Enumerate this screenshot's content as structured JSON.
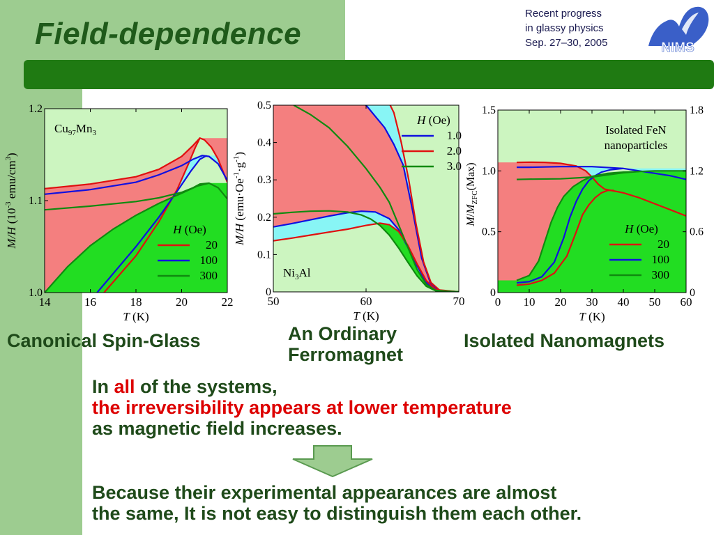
{
  "slide": {
    "title": "Field-dependence",
    "conference": [
      "Recent progress",
      "in glassy physics",
      "Sep. 27–30, 2005"
    ],
    "logo_text": "NIMS",
    "captions": {
      "left": "Canonical Spin-Glass",
      "middle": [
        "An Ordinary",
        "Ferromagnet"
      ],
      "right": "Isolated Nanomagnets"
    },
    "statement": {
      "line1_pre": "In ",
      "line1_highlight": "all",
      "line1_post": " of the systems,",
      "line2": "the irreversibility appears at lower temperature",
      "line3": "as magnetic field increases."
    },
    "conclusion": [
      "Because their experimental appearances are almost",
      "the same, It is not easy to distinguish them each other."
    ],
    "colors": {
      "title_green": "#1f5a1a",
      "bar_green": "#1f7a12",
      "panel_bg": "#ccf5c0",
      "fill_red": "#f47f7f",
      "fill_cyan": "#88f5f5",
      "fill_green": "#22dd22",
      "highlight_red": "#dd0000"
    }
  },
  "chart_data": [
    {
      "type": "line",
      "sample_label": [
        "Cu",
        "97",
        "Mn",
        "3"
      ],
      "xlabel": "T (K)",
      "ylabel": "M/H (10-3 emu/cm3)",
      "xlim": [
        14,
        22
      ],
      "ylim": [
        1.0,
        1.2
      ],
      "x_ticks": [
        14,
        16,
        18,
        20,
        22
      ],
      "y_ticks": [
        1.0,
        1.1,
        1.2
      ],
      "legend_title": "H (Oe)",
      "legend_position": "lower-right",
      "series": [
        {
          "name": "20",
          "color": "#e01010",
          "fc": [
            [
              14,
              1.113
            ],
            [
              16,
              1.118
            ],
            [
              18,
              1.126
            ],
            [
              19,
              1.134
            ],
            [
              20,
              1.148
            ],
            [
              20.5,
              1.16
            ],
            [
              20.8,
              1.168
            ],
            [
              21.0,
              1.166
            ],
            [
              21.3,
              1.158
            ],
            [
              21.6,
              1.145
            ],
            [
              22,
              1.12
            ]
          ],
          "zfc": [
            [
              16.6,
              1.0
            ],
            [
              18,
              1.04
            ],
            [
              19,
              1.077
            ],
            [
              19.8,
              1.112
            ],
            [
              20.3,
              1.14
            ],
            [
              20.6,
              1.158
            ],
            [
              20.8,
              1.168
            ]
          ]
        },
        {
          "name": "100",
          "color": "#1010e0",
          "fc": [
            [
              14,
              1.107
            ],
            [
              16,
              1.112
            ],
            [
              18,
              1.12
            ],
            [
              19,
              1.128
            ],
            [
              20,
              1.138
            ],
            [
              20.5,
              1.145
            ],
            [
              20.9,
              1.149
            ],
            [
              21.2,
              1.148
            ],
            [
              21.6,
              1.14
            ],
            [
              22,
              1.122
            ]
          ],
          "zfc": [
            [
              16.3,
              1.0
            ],
            [
              18,
              1.05
            ],
            [
              19,
              1.082
            ],
            [
              19.8,
              1.11
            ],
            [
              20.4,
              1.132
            ],
            [
              20.8,
              1.145
            ],
            [
              21.1,
              1.149
            ]
          ]
        },
        {
          "name": "300",
          "color": "#108a10",
          "fc": [
            [
              14,
              1.09
            ],
            [
              16,
              1.094
            ],
            [
              18,
              1.099
            ],
            [
              19,
              1.103
            ],
            [
              20,
              1.109
            ],
            [
              20.5,
              1.114
            ],
            [
              20.8,
              1.118
            ],
            [
              21.2,
              1.119
            ],
            [
              21.6,
              1.114
            ],
            [
              22,
              1.102
            ]
          ],
          "zfc": [
            [
              14,
              1.0
            ],
            [
              15,
              1.028
            ],
            [
              16,
              1.051
            ],
            [
              17,
              1.069
            ],
            [
              18,
              1.084
            ],
            [
              19,
              1.097
            ],
            [
              20,
              1.108
            ],
            [
              20.7,
              1.116
            ],
            [
              21.2,
              1.119
            ]
          ]
        }
      ]
    },
    {
      "type": "line",
      "sample_label": [
        "Ni",
        "3",
        "Al",
        ""
      ],
      "xlabel": "T (K)",
      "ylabel": "M/H (emu·Oe-1·g-1)",
      "xlim": [
        50,
        70
      ],
      "ylim": [
        0,
        0.5
      ],
      "x_ticks": [
        50,
        60,
        70
      ],
      "y_ticks": [
        0,
        0.1,
        0.2,
        0.3,
        0.4,
        0.5
      ],
      "legend_title": "H (Oe)",
      "legend_position": "top-right",
      "series": [
        {
          "name": "1.0",
          "color": "#1010e0",
          "fc": [
            [
              58.2,
              0.52
            ],
            [
              60,
              0.5
            ],
            [
              62,
              0.44
            ],
            [
              63,
              0.395
            ],
            [
              64,
              0.34
            ],
            [
              65,
              0.22
            ],
            [
              66,
              0.09
            ],
            [
              67,
              0.02
            ],
            [
              68,
              0.002
            ],
            [
              70,
              0
            ]
          ],
          "zfc": [
            [
              50,
              0.174
            ],
            [
              52,
              0.183
            ],
            [
              54,
              0.193
            ],
            [
              56,
              0.203
            ],
            [
              58,
              0.212
            ],
            [
              59.5,
              0.216
            ],
            [
              61,
              0.214
            ],
            [
              62.5,
              0.196
            ],
            [
              63.5,
              0.167
            ],
            [
              64.5,
              0.12
            ],
            [
              65.5,
              0.07
            ],
            [
              66.5,
              0.025
            ],
            [
              67.5,
              0.005
            ],
            [
              70,
              0
            ]
          ]
        },
        {
          "name": "2.0",
          "color": "#e01010",
          "fc": [
            [
              62.2,
              0.52
            ],
            [
              63,
              0.48
            ],
            [
              63.8,
              0.4
            ],
            [
              64.6,
              0.3
            ],
            [
              65.4,
              0.18
            ],
            [
              66.2,
              0.08
            ],
            [
              67,
              0.025
            ],
            [
              68,
              0.003
            ],
            [
              70,
              0
            ]
          ],
          "zfc": [
            [
              50,
              0.137
            ],
            [
              52,
              0.144
            ],
            [
              54,
              0.152
            ],
            [
              56,
              0.16
            ],
            [
              58,
              0.168
            ],
            [
              60,
              0.178
            ],
            [
              61.5,
              0.184
            ],
            [
              62.5,
              0.18
            ],
            [
              63.5,
              0.162
            ],
            [
              64.5,
              0.125
            ],
            [
              65.5,
              0.075
            ],
            [
              66.5,
              0.03
            ],
            [
              67.5,
              0.006
            ],
            [
              70,
              0
            ]
          ]
        },
        {
          "name": "3.0",
          "color": "#108a10",
          "fc": [
            [
              52.2,
              0.5
            ],
            [
              54,
              0.475
            ],
            [
              56,
              0.44
            ],
            [
              58,
              0.39
            ],
            [
              60,
              0.33
            ],
            [
              61.5,
              0.28
            ],
            [
              62.5,
              0.24
            ],
            [
              63.5,
              0.18
            ],
            [
              64.5,
              0.12
            ],
            [
              65.5,
              0.06
            ],
            [
              66.5,
              0.02
            ],
            [
              67.5,
              0.004
            ],
            [
              70,
              0
            ]
          ],
          "zfc": [
            [
              50,
              0.209
            ],
            [
              52,
              0.213
            ],
            [
              54,
              0.216
            ],
            [
              56,
              0.217
            ],
            [
              58,
              0.214
            ],
            [
              59.5,
              0.206
            ],
            [
              60.5,
              0.195
            ],
            [
              61.5,
              0.178
            ],
            [
              62.5,
              0.152
            ],
            [
              63.5,
              0.118
            ],
            [
              64.5,
              0.08
            ],
            [
              65.5,
              0.043
            ],
            [
              66.5,
              0.015
            ],
            [
              67.5,
              0.003
            ],
            [
              70,
              0
            ]
          ]
        }
      ]
    },
    {
      "type": "line",
      "sample_label": [
        "Isolated FeN",
        "",
        "nanoparticles",
        ""
      ],
      "xlabel": "T (K)",
      "ylabel": "M/MZFC(Max)",
      "y2label": "",
      "xlim": [
        0,
        60
      ],
      "ylim": [
        0,
        1.5
      ],
      "y2lim": [
        0,
        1.8
      ],
      "x_ticks": [
        0,
        10,
        20,
        30,
        40,
        50,
        60
      ],
      "y_ticks": [
        0.5,
        1.0,
        1.5
      ],
      "y_left_zero": "0",
      "y2_ticks": [
        0,
        0.6,
        1.2,
        1.8
      ],
      "legend_title": "H (Oe)",
      "legend_position": "lower-right",
      "series": [
        {
          "name": "20",
          "color": "#e01010",
          "fc": [
            [
              6,
              1.07
            ],
            [
              10,
              1.072
            ],
            [
              15,
              1.07
            ],
            [
              20,
              1.062
            ],
            [
              25,
              1.04
            ],
            [
              28,
              1.0
            ],
            [
              30,
              0.95
            ],
            [
              32,
              0.89
            ],
            [
              34,
              0.85
            ],
            [
              36,
              0.84
            ],
            [
              40,
              0.82
            ],
            [
              45,
              0.78
            ],
            [
              50,
              0.73
            ],
            [
              55,
              0.68
            ],
            [
              60,
              0.63
            ]
          ],
          "zfc": [
            [
              6,
              0.06
            ],
            [
              10,
              0.07
            ],
            [
              14,
              0.1
            ],
            [
              18,
              0.16
            ],
            [
              22,
              0.3
            ],
            [
              25,
              0.5
            ],
            [
              27,
              0.64
            ],
            [
              29,
              0.72
            ],
            [
              31,
              0.78
            ],
            [
              33,
              0.82
            ],
            [
              35,
              0.84
            ],
            [
              37,
              0.84
            ]
          ]
        },
        {
          "name": "100",
          "color": "#1010e0",
          "fc": [
            [
              6,
              1.03
            ],
            [
              10,
              1.03
            ],
            [
              20,
              1.035
            ],
            [
              30,
              1.035
            ],
            [
              40,
              1.02
            ],
            [
              45,
              1.0
            ],
            [
              50,
              0.98
            ],
            [
              55,
              0.96
            ],
            [
              60,
              0.93
            ]
          ],
          "zfc": [
            [
              6,
              0.08
            ],
            [
              10,
              0.09
            ],
            [
              14,
              0.13
            ],
            [
              18,
              0.25
            ],
            [
              21,
              0.45
            ],
            [
              23,
              0.62
            ],
            [
              25,
              0.75
            ],
            [
              27,
              0.85
            ],
            [
              29,
              0.92
            ],
            [
              31,
              0.96
            ],
            [
              33,
              0.99
            ],
            [
              36,
              1.01
            ],
            [
              40,
              1.02
            ]
          ]
        },
        {
          "name": "300",
          "color": "#108a10",
          "fc": [
            [
              6,
              0.93
            ],
            [
              10,
              0.932
            ],
            [
              20,
              0.935
            ],
            [
              30,
              0.95
            ],
            [
              40,
              0.985
            ],
            [
              45,
              0.995
            ],
            [
              50,
              1.0
            ],
            [
              55,
              1.0
            ],
            [
              60,
              1.0
            ]
          ],
          "zfc": [
            [
              6,
              0.1
            ],
            [
              10,
              0.14
            ],
            [
              13,
              0.26
            ],
            [
              15,
              0.42
            ],
            [
              17,
              0.58
            ],
            [
              19,
              0.7
            ],
            [
              21,
              0.79
            ],
            [
              24,
              0.87
            ],
            [
              27,
              0.92
            ],
            [
              30,
              0.955
            ],
            [
              35,
              0.98
            ],
            [
              40,
              0.99
            ],
            [
              45,
              0.995
            ]
          ]
        }
      ]
    }
  ]
}
